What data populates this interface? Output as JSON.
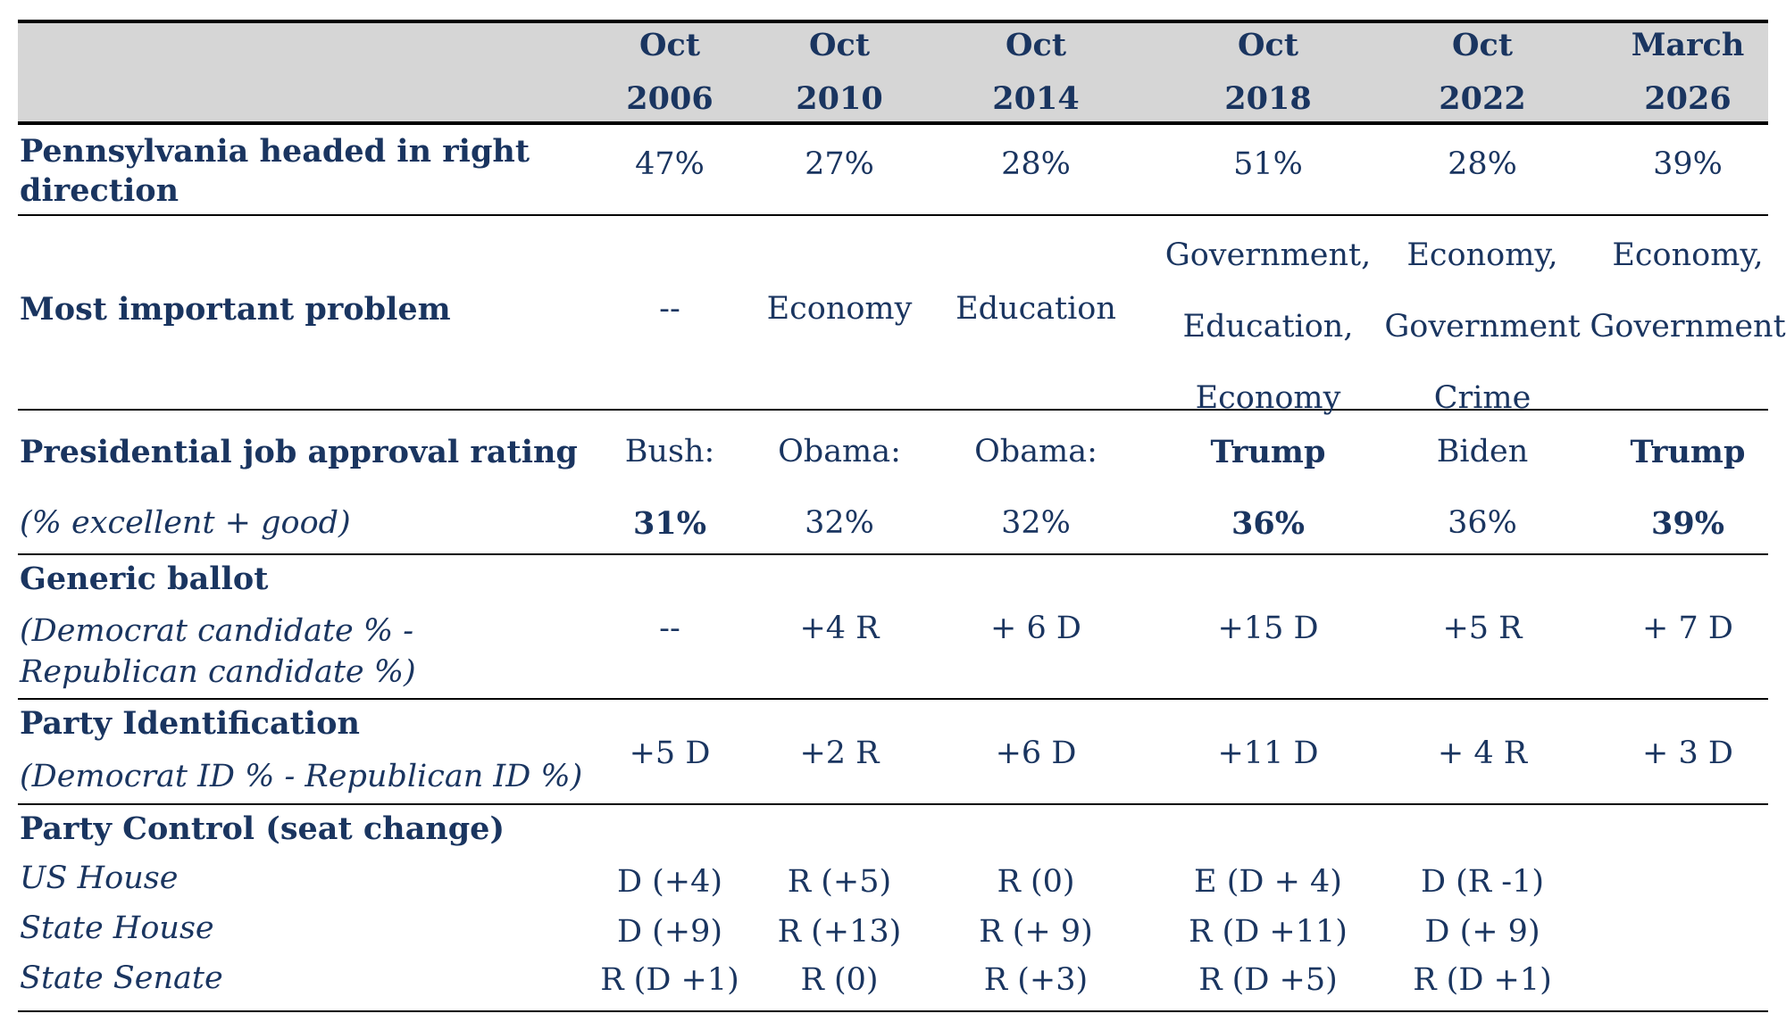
{
  "columns": [
    {
      "line1": "Oct",
      "line2": "2006"
    },
    {
      "line1": "Oct",
      "line2": "2010"
    },
    {
      "line1": "Oct",
      "line2": "2014"
    },
    {
      "line1": "Oct",
      "line2": "2018"
    },
    {
      "line1": "Oct",
      "line2": "2022"
    },
    {
      "line1": "March",
      "line2": "2026"
    }
  ],
  "rows": {
    "right_direction": {
      "label_line1": "Pennsylvania headed in right",
      "label_line2": "direction",
      "values": [
        "47%",
        "27%",
        "28%",
        "51%",
        "28%",
        "39%"
      ]
    },
    "problem": {
      "label": "Most important problem",
      "values": [
        [
          "--"
        ],
        [
          "Economy"
        ],
        [
          "Education"
        ],
        [
          "Government,",
          "Education,",
          "Economy"
        ],
        [
          "Economy,",
          "Government",
          "Crime"
        ],
        [
          "Economy,",
          "Government"
        ]
      ]
    },
    "approval": {
      "label": "Presidential job approval rating",
      "sublabel": "(% excellent + good)",
      "names": [
        "Bush:",
        "Obama:",
        "Obama:",
        "Trump",
        "Biden",
        "Trump"
      ],
      "values": [
        "31%",
        "32%",
        "32%",
        "36%",
        "36%",
        "39%"
      ]
    },
    "generic_ballot": {
      "label": "Generic ballot",
      "sublabel_line1": "(Democrat candidate % -",
      "sublabel_line2": "Republican candidate %)",
      "values": [
        "--",
        "+4 R",
        "+ 6 D",
        "+15 D",
        "+5 R",
        "+ 7 D"
      ]
    },
    "party_id": {
      "label": "Party Identification",
      "sublabel": "(Democrat ID % - Republican ID %)",
      "values": [
        "+5 D",
        "+2 R",
        "+6 D",
        "+11 D",
        "+ 4 R",
        "+ 3 D"
      ]
    },
    "party_control": {
      "label": "Party Control (seat change)",
      "us_house": {
        "label": "US House",
        "values": [
          "D (+4)",
          "R (+5)",
          "R (0)",
          "E (D + 4)",
          "D (R -1)",
          ""
        ]
      },
      "state_house": {
        "label": "State House",
        "values": [
          "D (+9)",
          "R (+13)",
          "R (+ 9)",
          "R (D +11)",
          "D (+ 9)",
          ""
        ]
      },
      "state_senate": {
        "label": "State Senate",
        "values": [
          "R (D +1)",
          "R (0)",
          "R (+3)",
          "R (D +5)",
          "R (D +1)",
          ""
        ]
      }
    }
  }
}
